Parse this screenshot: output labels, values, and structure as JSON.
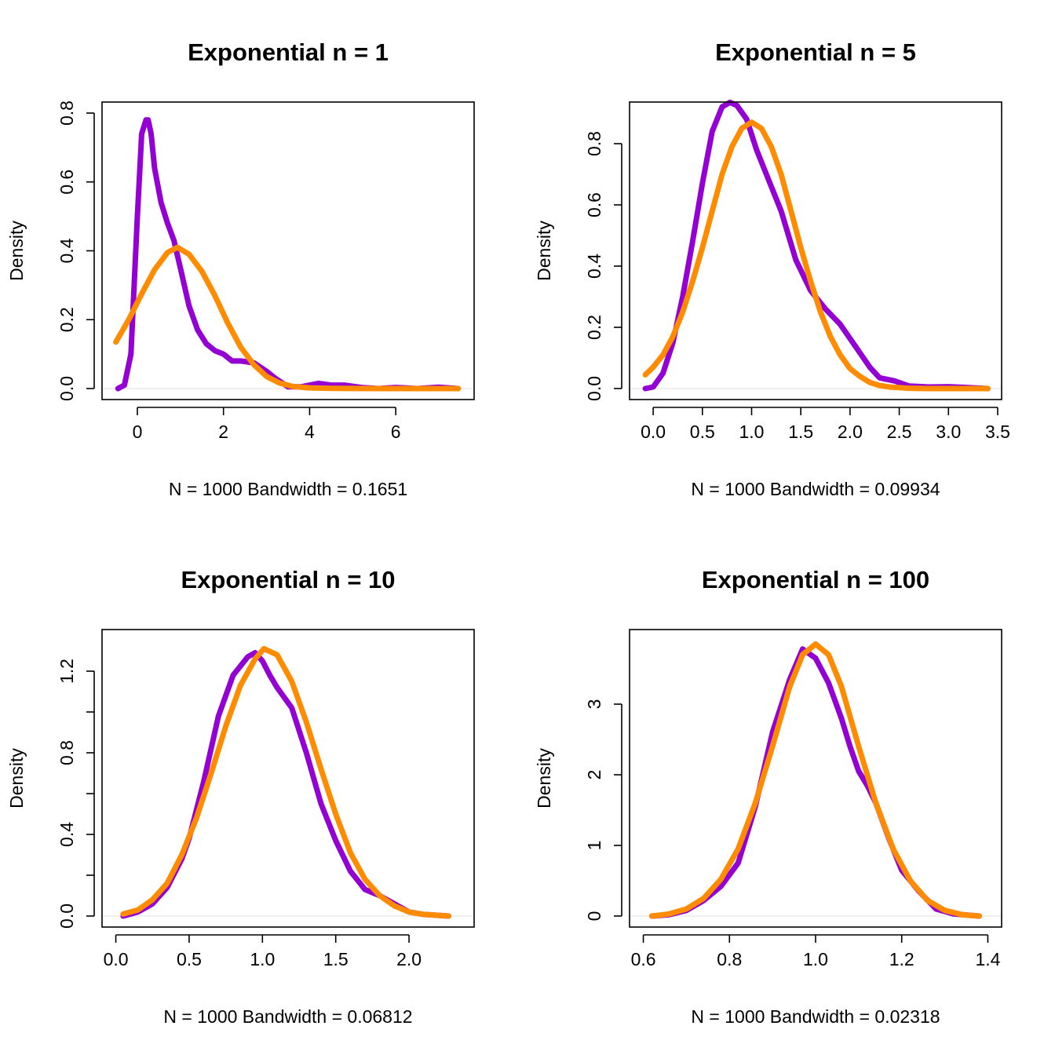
{
  "colors": {
    "kde": "#9400D3",
    "normal": "#FF8C00"
  },
  "chart_data": [
    {
      "type": "line",
      "title": "Exponential  n =  1",
      "xlabel": "N = 1000   Bandwidth = 0.1651",
      "ylabel": "Density",
      "xlim": [
        -0.5,
        7.5
      ],
      "ylim": [
        0,
        0.8
      ],
      "xticks": [
        0,
        2,
        4,
        6
      ],
      "xtick_labels": [
        "0",
        "2",
        "4",
        "6"
      ],
      "yticks": [
        0,
        0.2,
        0.4,
        0.6,
        0.8
      ],
      "ytick_labels": [
        "0.0",
        "0.2",
        "0.4",
        "0.6",
        "0.8"
      ],
      "grid": false,
      "series": [
        {
          "color": "#9400D3",
          "x": [
            -0.45,
            -0.3,
            -0.15,
            0.0,
            0.1,
            0.2,
            0.25,
            0.32,
            0.4,
            0.55,
            0.7,
            0.85,
            1.0,
            1.2,
            1.4,
            1.6,
            1.8,
            2.0,
            2.2,
            2.4,
            2.7,
            3.0,
            3.2,
            3.5,
            3.8,
            4.2,
            4.5,
            4.8,
            5.2,
            5.6,
            6.0,
            6.5,
            7.0,
            7.45
          ],
          "y": [
            0.0,
            0.01,
            0.1,
            0.5,
            0.74,
            0.78,
            0.78,
            0.74,
            0.64,
            0.54,
            0.48,
            0.43,
            0.35,
            0.24,
            0.17,
            0.13,
            0.11,
            0.1,
            0.08,
            0.08,
            0.075,
            0.05,
            0.03,
            0.005,
            0.005,
            0.015,
            0.01,
            0.01,
            0.003,
            0.0,
            0.003,
            0.0,
            0.004,
            0.0
          ]
        },
        {
          "color": "#FF8C00",
          "x": [
            -0.5,
            -0.2,
            0.1,
            0.4,
            0.7,
            0.93,
            1.2,
            1.5,
            1.8,
            2.1,
            2.4,
            2.7,
            3.0,
            3.3,
            3.6,
            4.0,
            4.5,
            5.0,
            6.0,
            7.45
          ],
          "y": [
            0.135,
            0.2,
            0.275,
            0.345,
            0.395,
            0.41,
            0.39,
            0.34,
            0.27,
            0.19,
            0.12,
            0.07,
            0.035,
            0.016,
            0.006,
            0.002,
            0.0005,
            0.0001,
            0.0,
            0.0
          ]
        }
      ]
    },
    {
      "type": "line",
      "title": "Exponential  n =  5",
      "xlabel": "N = 1000   Bandwidth = 0.09934",
      "ylabel": "Density",
      "xlim": [
        -0.1,
        3.4
      ],
      "ylim": [
        0,
        0.9
      ],
      "xticks": [
        0.0,
        0.5,
        1.0,
        1.5,
        2.0,
        2.5,
        3.0,
        3.5
      ],
      "xtick_labels": [
        "0.0",
        "0.5",
        "1.0",
        "1.5",
        "2.0",
        "2.5",
        "3.0",
        "3.5"
      ],
      "yticks": [
        0,
        0.2,
        0.4,
        0.6,
        0.8
      ],
      "ytick_labels": [
        "0.0",
        "0.2",
        "0.4",
        "0.6",
        "0.8"
      ],
      "grid": false,
      "series": [
        {
          "color": "#9400D3",
          "x": [
            -0.08,
            0.0,
            0.1,
            0.2,
            0.3,
            0.4,
            0.5,
            0.6,
            0.7,
            0.78,
            0.85,
            0.95,
            1.05,
            1.15,
            1.3,
            1.45,
            1.6,
            1.75,
            1.9,
            2.05,
            2.2,
            2.3,
            2.45,
            2.6,
            2.8,
            3.0,
            3.2,
            3.4
          ],
          "y": [
            0.0,
            0.005,
            0.05,
            0.15,
            0.3,
            0.48,
            0.67,
            0.84,
            0.92,
            0.935,
            0.925,
            0.88,
            0.78,
            0.7,
            0.58,
            0.42,
            0.32,
            0.26,
            0.21,
            0.14,
            0.07,
            0.035,
            0.025,
            0.008,
            0.005,
            0.006,
            0.003,
            0.0
          ]
        },
        {
          "color": "#FF8C00",
          "x": [
            -0.08,
            0.0,
            0.1,
            0.2,
            0.3,
            0.4,
            0.5,
            0.6,
            0.7,
            0.8,
            0.9,
            1.0,
            1.1,
            1.2,
            1.3,
            1.4,
            1.5,
            1.6,
            1.7,
            1.8,
            1.9,
            2.0,
            2.1,
            2.2,
            2.3,
            2.4,
            2.6,
            2.8,
            3.0,
            3.4
          ],
          "y": [
            0.045,
            0.07,
            0.11,
            0.17,
            0.25,
            0.35,
            0.46,
            0.58,
            0.7,
            0.79,
            0.85,
            0.87,
            0.85,
            0.79,
            0.7,
            0.58,
            0.46,
            0.35,
            0.25,
            0.17,
            0.11,
            0.065,
            0.04,
            0.02,
            0.01,
            0.005,
            0.001,
            0.0,
            0.0,
            0.0
          ]
        }
      ]
    },
    {
      "type": "line",
      "title": "Exponential  n =  10",
      "xlabel": "N = 1000   Bandwidth = 0.06812",
      "ylabel": "Density",
      "xlim": [
        0.0,
        2.35
      ],
      "ylim": [
        0,
        1.35
      ],
      "xticks": [
        0.0,
        0.5,
        1.0,
        1.5,
        2.0
      ],
      "xtick_labels": [
        "0.0",
        "0.5",
        "1.0",
        "1.5",
        "2.0"
      ],
      "yticks": [
        0,
        0.4,
        0.8,
        1.2
      ],
      "ytick_labels": [
        "0.0",
        "0.4",
        "0.8",
        "1.2"
      ],
      "minor_yticks": [
        0.2,
        0.6,
        1.0
      ],
      "grid": false,
      "series": [
        {
          "color": "#9400D3",
          "x": [
            0.05,
            0.15,
            0.25,
            0.35,
            0.45,
            0.5,
            0.6,
            0.7,
            0.8,
            0.9,
            0.95,
            1.0,
            1.05,
            1.1,
            1.2,
            1.3,
            1.4,
            1.5,
            1.6,
            1.7,
            1.8,
            1.9,
            2.0,
            2.1,
            2.27
          ],
          "y": [
            0.0,
            0.02,
            0.06,
            0.14,
            0.28,
            0.38,
            0.66,
            0.98,
            1.18,
            1.27,
            1.29,
            1.25,
            1.18,
            1.12,
            1.02,
            0.8,
            0.55,
            0.37,
            0.22,
            0.13,
            0.1,
            0.06,
            0.02,
            0.008,
            0.0
          ]
        },
        {
          "color": "#FF8C00",
          "x": [
            0.05,
            0.15,
            0.25,
            0.35,
            0.45,
            0.55,
            0.65,
            0.75,
            0.85,
            0.95,
            1.01,
            1.1,
            1.2,
            1.3,
            1.4,
            1.5,
            1.6,
            1.7,
            1.8,
            1.9,
            2.0,
            2.1,
            2.27
          ],
          "y": [
            0.01,
            0.03,
            0.08,
            0.16,
            0.3,
            0.48,
            0.7,
            0.93,
            1.13,
            1.26,
            1.31,
            1.28,
            1.15,
            0.95,
            0.72,
            0.5,
            0.31,
            0.18,
            0.1,
            0.05,
            0.02,
            0.008,
            0.0
          ]
        }
      ]
    },
    {
      "type": "line",
      "title": "Exponential  n =  100",
      "xlabel": "N = 1000   Bandwidth = 0.02318",
      "ylabel": "Density",
      "xlim": [
        0.6,
        1.4
      ],
      "ylim": [
        0,
        3.9
      ],
      "xticks": [
        0.6,
        0.8,
        1.0,
        1.2,
        1.4
      ],
      "xtick_labels": [
        "0.6",
        "0.8",
        "1.0",
        "1.2",
        "1.4"
      ],
      "yticks": [
        0,
        1,
        2,
        3
      ],
      "ytick_labels": [
        "0",
        "1",
        "2",
        "3"
      ],
      "grid": false,
      "series": [
        {
          "color": "#9400D3",
          "x": [
            0.62,
            0.66,
            0.7,
            0.74,
            0.78,
            0.82,
            0.86,
            0.9,
            0.94,
            0.97,
            1.0,
            1.03,
            1.06,
            1.08,
            1.1,
            1.12,
            1.14,
            1.17,
            1.2,
            1.24,
            1.28,
            1.32,
            1.38
          ],
          "y": [
            0.0,
            0.02,
            0.08,
            0.22,
            0.42,
            0.75,
            1.55,
            2.6,
            3.35,
            3.78,
            3.65,
            3.3,
            2.8,
            2.4,
            2.05,
            1.85,
            1.6,
            1.1,
            0.65,
            0.35,
            0.1,
            0.03,
            0.0
          ]
        },
        {
          "color": "#FF8C00",
          "x": [
            0.62,
            0.66,
            0.7,
            0.74,
            0.78,
            0.82,
            0.86,
            0.9,
            0.94,
            0.97,
            1.0,
            1.03,
            1.06,
            1.1,
            1.14,
            1.18,
            1.22,
            1.26,
            1.3,
            1.34,
            1.38
          ],
          "y": [
            0.0,
            0.03,
            0.1,
            0.25,
            0.52,
            0.95,
            1.6,
            2.4,
            3.25,
            3.7,
            3.85,
            3.7,
            3.25,
            2.4,
            1.6,
            0.95,
            0.5,
            0.22,
            0.08,
            0.02,
            0.0
          ]
        }
      ]
    }
  ]
}
